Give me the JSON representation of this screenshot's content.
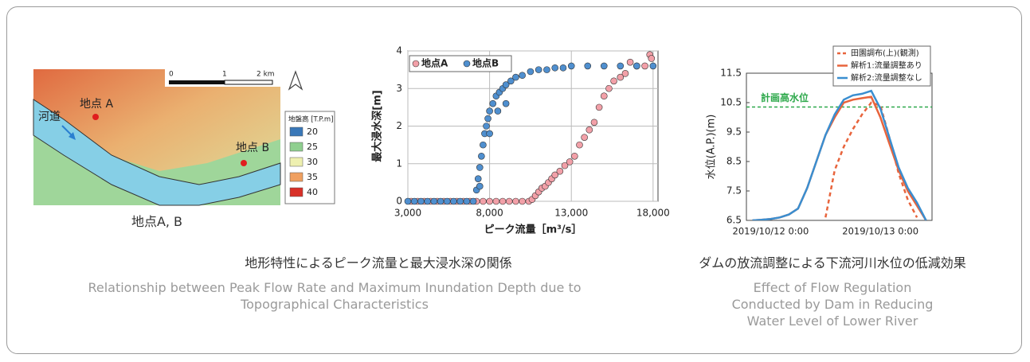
{
  "map": {
    "scale_labels": [
      "0",
      "1",
      "2 km"
    ],
    "point_a": "地点 A",
    "point_b": "地点 B",
    "river": "河道",
    "legend_title": "地盤高 [T.P.m]",
    "legend": [
      {
        "label": "20",
        "color": "#3a78b8"
      },
      {
        "label": "25",
        "color": "#8fcf8f"
      },
      {
        "label": "30",
        "color": "#eef0b0"
      },
      {
        "label": "35",
        "color": "#f0a060"
      },
      {
        "label": "40",
        "color": "#d83028"
      }
    ],
    "caption": "地点A, B"
  },
  "chart_data": [
    {
      "type": "scatter",
      "xlabel": "ピーク流量［m³/s］",
      "ylabel": "最大浸水深[m]",
      "xlim": [
        3000,
        18300
      ],
      "ylim": [
        0,
        4
      ],
      "xticks": [
        {
          "value": 3000,
          "label": "3,000"
        },
        {
          "value": 8000,
          "label": "8,000"
        },
        {
          "value": 13000,
          "label": "13,000"
        },
        {
          "value": 18000,
          "label": "18,000"
        }
      ],
      "yticks": [
        0,
        1,
        2,
        3,
        4
      ],
      "grid": true,
      "legend": "upper left",
      "series": [
        {
          "name": "地点A",
          "color": "#f2a0a8",
          "x": [
            3200,
            3600,
            4000,
            4400,
            4800,
            5200,
            5600,
            6000,
            6400,
            6800,
            7200,
            7600,
            8000,
            8400,
            8800,
            9200,
            9600,
            10000,
            10400,
            10600,
            10800,
            11000,
            11200,
            11400,
            11600,
            11800,
            12000,
            12300,
            12600,
            12900,
            13200,
            13500,
            13800,
            14100,
            14400,
            14700,
            15000,
            15300,
            15600,
            16000,
            16300,
            16600,
            17000,
            17500,
            17800,
            17900
          ],
          "values": [
            0,
            0,
            0,
            0,
            0,
            0,
            0,
            0,
            0,
            0,
            0,
            0,
            0,
            0,
            0,
            0,
            0,
            0,
            0,
            0.05,
            0.15,
            0.25,
            0.35,
            0.4,
            0.5,
            0.6,
            0.7,
            0.8,
            0.95,
            1.05,
            1.2,
            1.5,
            1.7,
            1.9,
            2.1,
            2.5,
            2.8,
            3.0,
            3.2,
            3.3,
            3.4,
            3.7,
            3.6,
            3.6,
            3.9,
            3.8
          ]
        },
        {
          "name": "地点B",
          "color": "#4f8fcf",
          "x": [
            3000,
            3400,
            3800,
            4200,
            4600,
            5000,
            5400,
            5800,
            6200,
            6600,
            7000,
            7200,
            7300,
            7400,
            7400,
            7500,
            7600,
            7700,
            7800,
            7900,
            8000,
            8000,
            8200,
            8400,
            8500,
            8600,
            8800,
            9000,
            9000,
            9300,
            9600,
            10000,
            10500,
            11000,
            11500,
            12000,
            12500,
            13000,
            14000,
            15000,
            16000,
            17000,
            18000
          ],
          "values": [
            0,
            0,
            0,
            0,
            0,
            0,
            0,
            0,
            0,
            0,
            0,
            0.3,
            0.6,
            0.9,
            0.4,
            1.2,
            1.5,
            1.8,
            2.0,
            2.2,
            2.4,
            1.8,
            2.6,
            2.8,
            2.4,
            2.9,
            3.0,
            3.1,
            2.6,
            3.2,
            3.3,
            3.35,
            3.45,
            3.5,
            3.5,
            3.55,
            3.55,
            3.6,
            3.6,
            3.6,
            3.6,
            3.6,
            3.6
          ]
        }
      ],
      "caption": "地形特性によるピーク流量と最大浸水深の関係",
      "caption_en": "Relationship between Peak Flow Rate and Maximum Inundation Depth due to Topographical Characteristics"
    },
    {
      "type": "line",
      "ylabel": "水位(A.P.)(m)",
      "categories": [
        null,
        null,
        "2019/10/12 0:00",
        null,
        null,
        null,
        null,
        null,
        null,
        null,
        null,
        null,
        null,
        null,
        "2019/10/13 0:00",
        null,
        null,
        null,
        null,
        null
      ],
      "ylim": [
        6.5,
        11.5
      ],
      "yticks": [
        6.5,
        7.5,
        8.5,
        9.5,
        10.5,
        11.5
      ],
      "grid": false,
      "legend": "upper right",
      "reference_line": {
        "label": "計画高水位",
        "value": 10.35,
        "color": "#2ca84a"
      },
      "series": [
        {
          "name": "田園調布(上)(観測)",
          "color": "#e8643c",
          "dashed": true,
          "values": [
            null,
            null,
            null,
            null,
            null,
            null,
            null,
            null,
            6.6,
            8.2,
            9.0,
            9.6,
            10.1,
            10.5,
            10.4,
            9.3,
            8.1,
            7.2,
            6.6,
            null
          ]
        },
        {
          "name": "解析1:流量調整あり",
          "color": "#e8643c",
          "dashed": false,
          "values": [
            6.5,
            6.52,
            6.55,
            6.6,
            6.7,
            6.9,
            7.6,
            8.5,
            9.4,
            10.0,
            10.5,
            10.6,
            10.65,
            10.7,
            10.0,
            9.1,
            8.2,
            7.5,
            7.0,
            6.5
          ]
        },
        {
          "name": "解析2:流量調整なし",
          "color": "#3a8ed0",
          "dashed": false,
          "values": [
            6.5,
            6.52,
            6.55,
            6.6,
            6.7,
            6.9,
            7.6,
            8.5,
            9.4,
            10.1,
            10.6,
            10.75,
            10.8,
            10.9,
            10.3,
            9.3,
            8.3,
            7.6,
            7.1,
            6.5
          ]
        }
      ],
      "caption": "ダムの放流調整による下流河川水位の低減効果",
      "caption_en": "Effect of Flow Regulation Conducted by Dam in Reducing Water Level of Lower River"
    }
  ]
}
